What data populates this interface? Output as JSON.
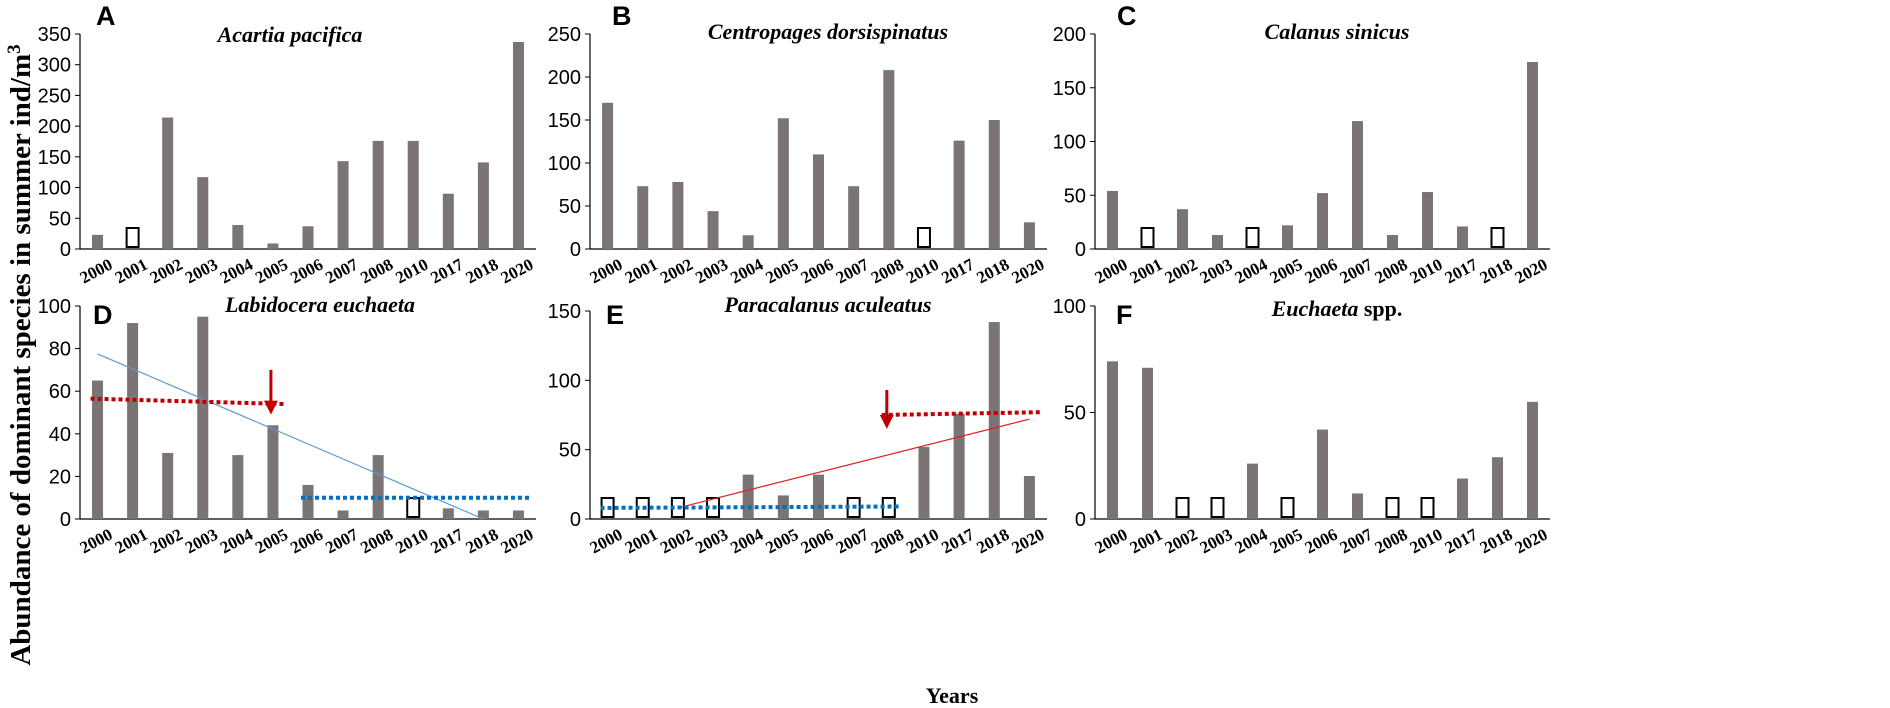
{
  "figure": {
    "y_axis_label": "Abundance of dominant species in summer ind/m",
    "y_axis_label_sup": "3",
    "x_axis_label": "Years"
  },
  "colors": {
    "bar": "#7a7474",
    "red": "#c00000",
    "blue": "#0070c0",
    "trend_blue": "#5b9bd5",
    "trend_red": "#e02020"
  },
  "chart_data": [
    {
      "label": "A",
      "type": "bar",
      "title": "Acartia pacifica",
      "title_suffix": "",
      "categories": [
        "2000",
        "2001",
        "2002",
        "2003",
        "2004",
        "2005",
        "2006",
        "2007",
        "2008",
        "2010",
        "2017",
        "2018",
        "2020"
      ],
      "values": [
        23,
        0,
        214,
        117,
        39,
        9,
        37,
        143,
        176,
        176,
        90,
        141,
        337
      ],
      "no_data": [
        "2001"
      ],
      "ylim": [
        0,
        350
      ],
      "yticks": [
        0,
        50,
        100,
        150,
        200,
        250,
        300,
        350
      ]
    },
    {
      "label": "B",
      "type": "bar",
      "title": "Centropages dorsispinatus",
      "title_suffix": "",
      "categories": [
        "2000",
        "2001",
        "2002",
        "2003",
        "2004",
        "2005",
        "2006",
        "2007",
        "2008",
        "2010",
        "2017",
        "2018",
        "2020"
      ],
      "values": [
        170,
        73,
        78,
        44,
        16,
        152,
        110,
        73,
        208,
        0,
        126,
        150,
        31
      ],
      "no_data": [
        "2010"
      ],
      "ylim": [
        0,
        250
      ],
      "yticks": [
        0,
        50,
        100,
        150,
        200,
        250
      ]
    },
    {
      "label": "C",
      "type": "bar",
      "title": "Calanus sinicus",
      "title_suffix": "",
      "categories": [
        "2000",
        "2001",
        "2002",
        "2003",
        "2004",
        "2005",
        "2006",
        "2007",
        "2008",
        "2010",
        "2017",
        "2018",
        "2020"
      ],
      "values": [
        54,
        0,
        37,
        13,
        0,
        22,
        52,
        119,
        13,
        53,
        21,
        0,
        174
      ],
      "no_data": [
        "2001",
        "2004",
        "2018"
      ],
      "ylim": [
        0,
        200
      ],
      "yticks": [
        0,
        50,
        100,
        150,
        200
      ]
    },
    {
      "label": "D",
      "type": "bar",
      "title": "Labidocera euchaeta",
      "title_suffix": "",
      "categories": [
        "2000",
        "2001",
        "2002",
        "2003",
        "2004",
        "2005",
        "2006",
        "2007",
        "2008",
        "2010",
        "2017",
        "2018",
        "2020"
      ],
      "values": [
        65,
        92,
        31,
        95,
        30,
        44,
        16,
        4,
        30,
        0,
        5,
        4,
        4
      ],
      "no_data": [
        "2010"
      ],
      "ylim": [
        0,
        100
      ],
      "yticks": [
        0,
        20,
        40,
        60,
        80,
        100
      ],
      "trend_line": {
        "from_index": 0,
        "to_index": 11,
        "from_value": 77.5,
        "to_value": 0,
        "color": "#5b9bd5"
      },
      "dotted_lines": [
        {
          "from_index": 0,
          "to_index": 5,
          "from_value": 56.5,
          "to_value": 54,
          "color": "#c00000"
        },
        {
          "from_index": 6,
          "to_index": 12,
          "from_value": 10,
          "to_value": 10,
          "color": "#0070c0"
        }
      ],
      "arrow": {
        "index": 5,
        "top_value": 70,
        "bottom_value": 49,
        "color": "#c00000"
      }
    },
    {
      "label": "E",
      "type": "bar",
      "title": "Paracalanus aculeatus",
      "title_suffix": "",
      "categories": [
        "2000",
        "2001",
        "2002",
        "2003",
        "2004",
        "2005",
        "2006",
        "2007",
        "2008",
        "2010",
        "2017",
        "2018",
        "2020"
      ],
      "values": [
        0,
        0,
        0,
        0,
        32,
        17,
        32,
        0,
        0,
        52,
        76,
        142,
        31
      ],
      "no_data": [
        "2000",
        "2001",
        "2002",
        "2003",
        "2007",
        "2008"
      ],
      "ylim": [
        0,
        150
      ],
      "yticks": [
        0,
        50,
        100,
        150
      ],
      "trend_line": {
        "from_index": 2,
        "to_index": 12,
        "from_value": 8,
        "to_value": 72,
        "color": "#e02020"
      },
      "dotted_lines": [
        {
          "from_index": 0,
          "to_index": 8,
          "from_value": 8,
          "to_value": 9,
          "color": "#0070c0"
        },
        {
          "from_index": 8,
          "to_index": 12,
          "from_value": 75,
          "to_value": 77,
          "color": "#c00000"
        }
      ],
      "arrow": {
        "index": 8,
        "top_value": 93,
        "bottom_value": 65,
        "color": "#c00000"
      }
    },
    {
      "label": "F",
      "type": "bar",
      "title": "Euchaeta",
      "title_suffix": " spp.",
      "categories": [
        "2000",
        "2001",
        "2002",
        "2003",
        "2004",
        "2005",
        "2006",
        "2007",
        "2008",
        "2010",
        "2017",
        "2018",
        "2020"
      ],
      "values": [
        74,
        71,
        0,
        0,
        26,
        0,
        42,
        12,
        0,
        0,
        19,
        29,
        55
      ],
      "no_data": [
        "2002",
        "2003",
        "2005",
        "2008",
        "2010"
      ],
      "ylim": [
        0,
        100
      ],
      "yticks": [
        0,
        50,
        100
      ]
    }
  ]
}
